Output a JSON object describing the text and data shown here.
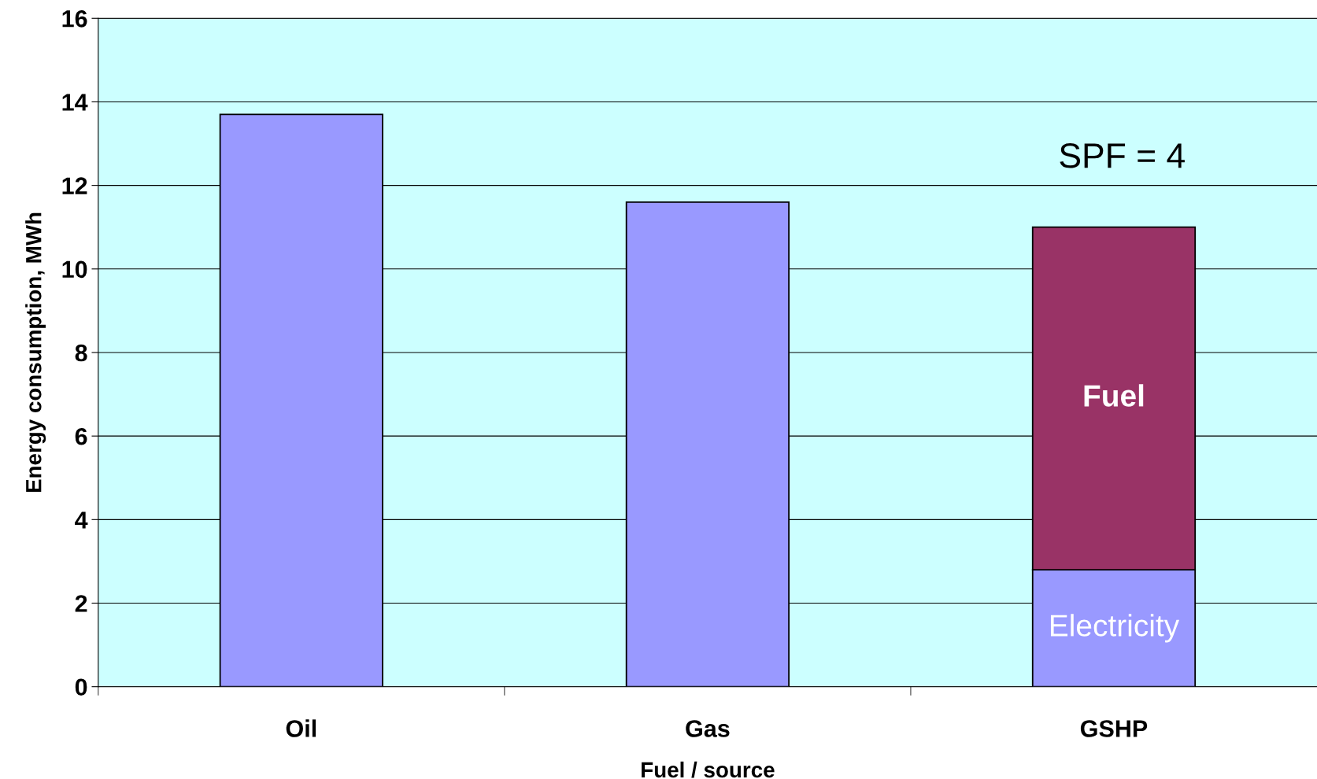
{
  "chart_data": {
    "type": "bar",
    "stacked": true,
    "xlabel": "Fuel / source",
    "ylabel": "Energy consumption, MWh",
    "categories": [
      "Oil",
      "Gas",
      "GSHP"
    ],
    "series": [
      {
        "color": "#9999ff",
        "values": [
          13.7,
          11.6,
          null
        ]
      },
      {
        "name": "Electricity",
        "color": "#9999ff",
        "values": [
          null,
          null,
          2.8
        ]
      },
      {
        "name": "Fuel",
        "color": "#993366",
        "values": [
          null,
          null,
          8.2
        ]
      }
    ],
    "ylim": [
      0,
      16
    ],
    "yticks": [
      0,
      2,
      4,
      6,
      8,
      10,
      12,
      14,
      16
    ],
    "grid": "y",
    "legend": false,
    "annotations": [
      "SPF = 4"
    ]
  }
}
